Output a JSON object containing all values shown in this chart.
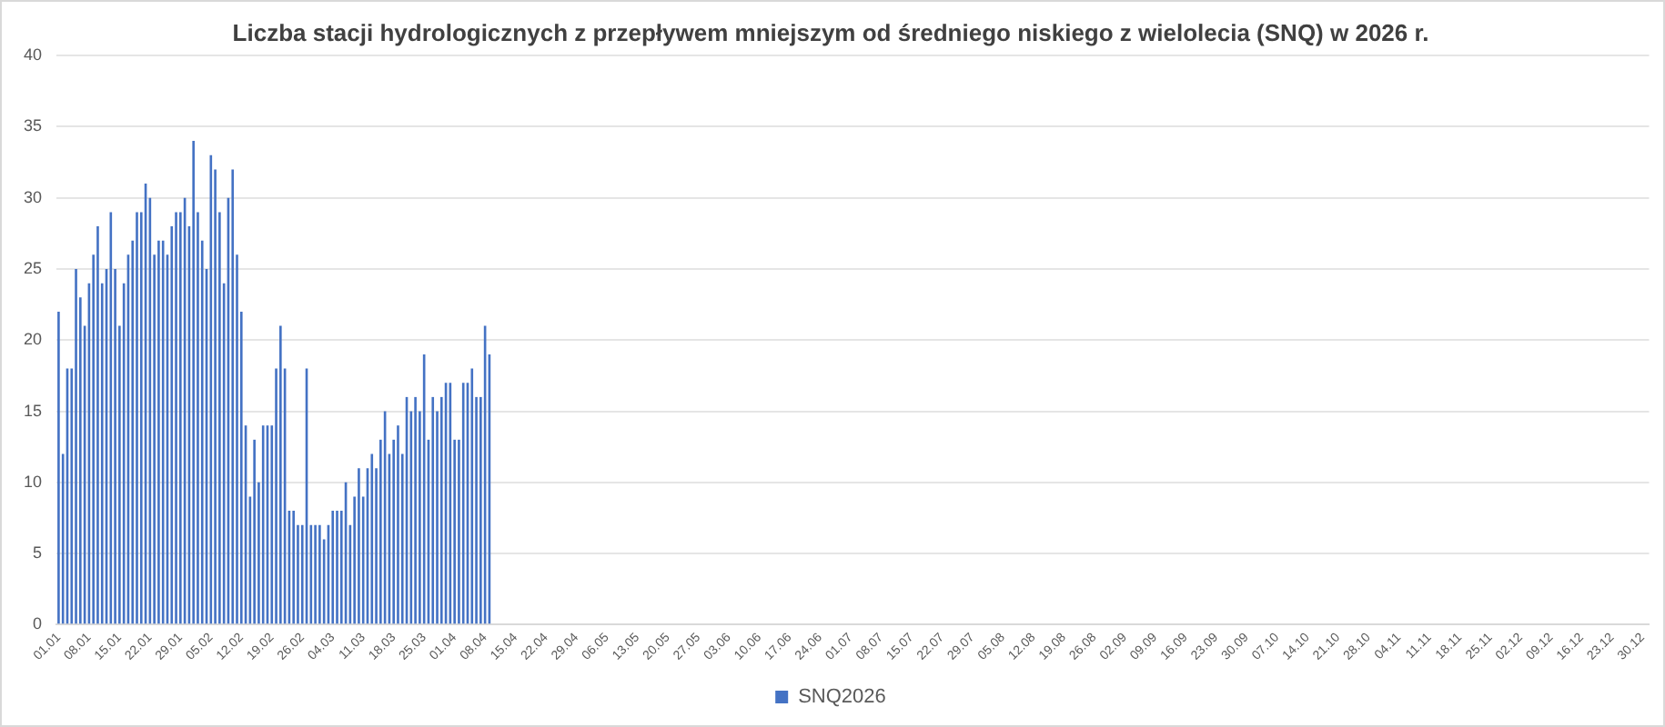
{
  "chart_data": {
    "type": "bar",
    "title": "Liczba stacji hydrologicznych z przepływem mniejszym od średniego niskiego z wielolecia (SNQ) w 2026 r.",
    "categories": [
      "01.01",
      null,
      null,
      null,
      null,
      null,
      null,
      "08.01",
      null,
      null,
      null,
      null,
      null,
      null,
      "15.01",
      null,
      null,
      null,
      null,
      null,
      null,
      "22.01",
      null,
      null,
      null,
      null,
      null,
      null,
      "29.01",
      null,
      null,
      null,
      null,
      null,
      null,
      "05.02",
      null,
      null,
      null,
      null,
      null,
      null,
      "12.02",
      null,
      null,
      null,
      null,
      null,
      null,
      "19.02",
      null,
      null,
      null,
      null,
      null,
      null,
      "26.02",
      null,
      null,
      null,
      null,
      null,
      null,
      "04.03",
      null,
      null,
      null,
      null,
      null,
      null,
      "11.03",
      null,
      null,
      null,
      null,
      null,
      null,
      "18.03",
      null,
      null,
      null,
      null,
      null,
      null,
      "25.03",
      null,
      null,
      null,
      null,
      null,
      null,
      "01.04",
      null,
      null,
      null,
      null,
      null,
      null,
      "08.04",
      null,
      null,
      null,
      null,
      null,
      null,
      "15.04",
      null,
      null,
      null,
      null,
      null,
      null,
      "22.04",
      null,
      null,
      null,
      null,
      null,
      null,
      "29.04",
      null,
      null,
      null,
      null,
      null,
      null,
      "06.05",
      null,
      null,
      null,
      null,
      null,
      null,
      "13.05",
      null,
      null,
      null,
      null,
      null,
      null,
      "20.05",
      null,
      null,
      null,
      null,
      null,
      null,
      "27.05",
      null,
      null,
      null,
      null,
      null,
      null,
      "03.06",
      null,
      null,
      null,
      null,
      null,
      null,
      "10.06",
      null,
      null,
      null,
      null,
      null,
      null,
      "17.06",
      null,
      null,
      null,
      null,
      null,
      null,
      "24.06",
      null,
      null,
      null,
      null,
      null,
      null,
      "01.07",
      null,
      null,
      null,
      null,
      null,
      null,
      "08.07",
      null,
      null,
      null,
      null,
      null,
      null,
      "15.07",
      null,
      null,
      null,
      null,
      null,
      null,
      "22.07",
      null,
      null,
      null,
      null,
      null,
      null,
      "29.07",
      null,
      null,
      null,
      null,
      null,
      null,
      "05.08",
      null,
      null,
      null,
      null,
      null,
      null,
      "12.08",
      null,
      null,
      null,
      null,
      null,
      null,
      "19.08",
      null,
      null,
      null,
      null,
      null,
      null,
      "26.08",
      null,
      null,
      null,
      null,
      null,
      null,
      "02.09",
      null,
      null,
      null,
      null,
      null,
      null,
      "09.09",
      null,
      null,
      null,
      null,
      null,
      null,
      "16.09",
      null,
      null,
      null,
      null,
      null,
      null,
      "23.09",
      null,
      null,
      null,
      null,
      null,
      null,
      "30.09",
      null,
      null,
      null,
      null,
      null,
      null,
      "07.10",
      null,
      null,
      null,
      null,
      null,
      null,
      "14.10",
      null,
      null,
      null,
      null,
      null,
      null,
      "21.10",
      null,
      null,
      null,
      null,
      null,
      null,
      "28.10",
      null,
      null,
      null,
      null,
      null,
      null,
      "04.11",
      null,
      null,
      null,
      null,
      null,
      null,
      "11.11",
      null,
      null,
      null,
      null,
      null,
      null,
      "18.11",
      null,
      null,
      null,
      null,
      null,
      null,
      "25.11",
      null,
      null,
      null,
      null,
      null,
      null,
      "02.12",
      null,
      null,
      null,
      null,
      null,
      null,
      "09.12",
      null,
      null,
      null,
      null,
      null,
      null,
      "16.12",
      null,
      null,
      null,
      null,
      null,
      null,
      "23.12",
      null,
      null,
      null,
      null,
      null,
      null,
      "30.12",
      null
    ],
    "series": [
      {
        "name": "SNQ2026",
        "color": "#4472c4",
        "values": [
          22,
          12,
          18,
          18,
          25,
          23,
          21,
          24,
          26,
          28,
          24,
          25,
          29,
          25,
          21,
          24,
          26,
          27,
          29,
          29,
          31,
          30,
          26,
          27,
          27,
          26,
          28,
          29,
          29,
          30,
          28,
          34,
          29,
          27,
          25,
          33,
          32,
          29,
          24,
          30,
          32,
          26,
          22,
          14,
          9,
          13,
          10,
          14,
          14,
          14,
          18,
          21,
          18,
          8,
          8,
          7,
          7,
          18,
          7,
          7,
          7,
          6,
          7,
          8,
          8,
          8,
          10,
          7,
          9,
          11,
          9,
          11,
          12,
          11,
          13,
          15,
          12,
          13,
          14,
          12,
          16,
          15,
          16,
          15,
          19,
          13,
          16,
          15,
          16,
          17,
          17,
          13,
          13,
          17,
          17,
          18,
          16,
          16,
          21,
          19,
          null,
          null,
          null,
          null,
          null,
          null,
          null,
          null,
          null,
          null,
          null,
          null,
          null,
          null,
          null,
          null,
          null,
          null,
          null,
          null,
          null,
          null,
          null,
          null,
          null,
          null,
          null,
          null,
          null,
          null,
          null,
          null,
          null,
          null,
          null,
          null,
          null,
          null,
          null,
          null,
          null,
          null,
          null,
          null,
          null,
          null,
          null,
          null,
          null,
          null,
          null,
          null,
          null,
          null,
          null,
          null,
          null,
          null,
          null,
          null,
          null,
          null,
          null,
          null,
          null,
          null,
          null,
          null,
          null,
          null,
          null,
          null,
          null,
          null,
          null,
          null,
          null,
          null,
          null,
          null,
          null,
          null,
          null,
          null,
          null,
          null,
          null,
          null,
          null,
          null,
          null,
          null,
          null,
          null,
          null,
          null,
          null,
          null,
          null,
          null,
          null,
          null,
          null,
          null,
          null,
          null,
          null,
          null,
          null,
          null,
          null,
          null,
          null,
          null,
          null,
          null,
          null,
          null,
          null,
          null,
          null,
          null,
          null,
          null,
          null,
          null,
          null,
          null,
          null,
          null,
          null,
          null,
          null,
          null,
          null,
          null,
          null,
          null,
          null,
          null,
          null,
          null,
          null,
          null,
          null,
          null,
          null,
          null,
          null,
          null,
          null,
          null,
          null,
          null,
          null,
          null,
          null,
          null,
          null,
          null,
          null,
          null,
          null,
          null,
          null,
          null,
          null,
          null,
          null,
          null,
          null,
          null,
          null,
          null,
          null,
          null,
          null,
          null,
          null,
          null,
          null,
          null,
          null,
          null,
          null,
          null,
          null,
          null,
          null,
          null,
          null,
          null,
          null,
          null,
          null,
          null,
          null,
          null,
          null,
          null,
          null,
          null,
          null,
          null,
          null,
          null,
          null,
          null,
          null,
          null,
          null,
          null,
          null,
          null,
          null,
          null,
          null,
          null,
          null,
          null,
          null,
          null,
          null,
          null,
          null,
          null,
          null,
          null,
          null,
          null,
          null,
          null,
          null,
          null,
          null,
          null,
          null,
          null,
          null,
          null,
          null,
          null,
          null,
          null,
          null,
          null,
          null,
          null,
          null,
          null,
          null,
          null,
          null,
          null,
          null,
          null,
          null,
          null,
          null,
          null,
          null,
          null,
          null,
          null,
          null,
          null
        ]
      }
    ],
    "ylim": [
      0,
      40
    ],
    "yticks": [
      0,
      5,
      10,
      15,
      20,
      25,
      30,
      35,
      40
    ],
    "grid": "y",
    "legend": "bottom"
  }
}
